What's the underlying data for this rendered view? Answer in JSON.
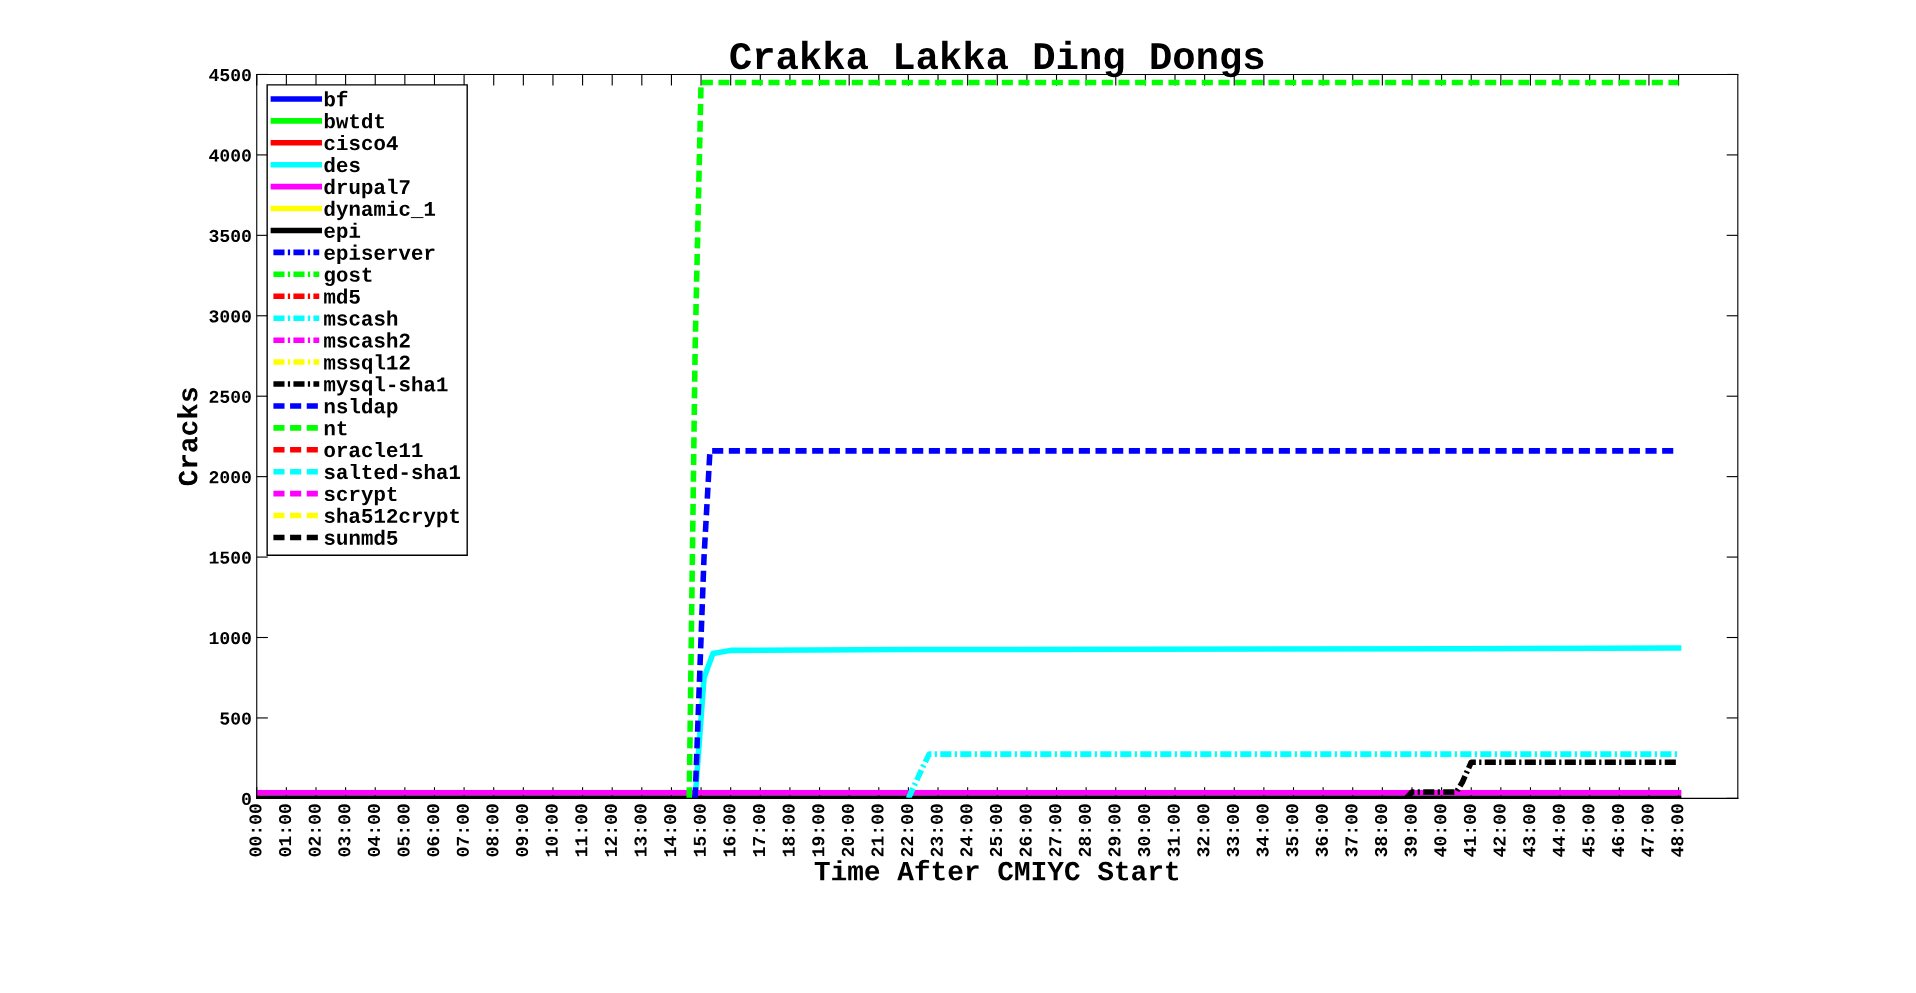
{
  "chart_data": {
    "type": "line",
    "title": "Crakka Lakka Ding Dongs",
    "xlabel": "Time After CMIYC Start",
    "ylabel": "Cracks",
    "xlim": [
      0,
      50
    ],
    "ylim": [
      0,
      4500
    ],
    "yticks": [
      0,
      500,
      1000,
      1500,
      2000,
      2500,
      3000,
      3500,
      4000,
      4500
    ],
    "xticks": [
      {
        "value": 0,
        "label": "00:00"
      },
      {
        "value": 1,
        "label": "01:00"
      },
      {
        "value": 2,
        "label": "02:00"
      },
      {
        "value": 3,
        "label": "03:00"
      },
      {
        "value": 4,
        "label": "04:00"
      },
      {
        "value": 5,
        "label": "05:00"
      },
      {
        "value": 6,
        "label": "06:00"
      },
      {
        "value": 7,
        "label": "07:00"
      },
      {
        "value": 8,
        "label": "08:00"
      },
      {
        "value": 9,
        "label": "09:00"
      },
      {
        "value": 10,
        "label": "10:00"
      },
      {
        "value": 11,
        "label": "11:00"
      },
      {
        "value": 12,
        "label": "12:00"
      },
      {
        "value": 13,
        "label": "13:00"
      },
      {
        "value": 14,
        "label": "14:00"
      },
      {
        "value": 15,
        "label": "15:00"
      },
      {
        "value": 16,
        "label": "16:00"
      },
      {
        "value": 17,
        "label": "17:00"
      },
      {
        "value": 18,
        "label": "18:00"
      },
      {
        "value": 19,
        "label": "19:00"
      },
      {
        "value": 20,
        "label": "20:00"
      },
      {
        "value": 21,
        "label": "21:00"
      },
      {
        "value": 22,
        "label": "22:00"
      },
      {
        "value": 23,
        "label": "23:00"
      },
      {
        "value": 24,
        "label": "24:00"
      },
      {
        "value": 25,
        "label": "25:00"
      },
      {
        "value": 26,
        "label": "26:00"
      },
      {
        "value": 27,
        "label": "27:00"
      },
      {
        "value": 28,
        "label": "28:00"
      },
      {
        "value": 29,
        "label": "29:00"
      },
      {
        "value": 30,
        "label": "30:00"
      },
      {
        "value": 31,
        "label": "31:00"
      },
      {
        "value": 32,
        "label": "32:00"
      },
      {
        "value": 33,
        "label": "33:00"
      },
      {
        "value": 34,
        "label": "34:00"
      },
      {
        "value": 35,
        "label": "35:00"
      },
      {
        "value": 36,
        "label": "36:00"
      },
      {
        "value": 37,
        "label": "37:00"
      },
      {
        "value": 38,
        "label": "38:00"
      },
      {
        "value": 39,
        "label": "39:00"
      },
      {
        "value": 40,
        "label": "40:00"
      },
      {
        "value": 41,
        "label": "41:00"
      },
      {
        "value": 42,
        "label": "42:00"
      },
      {
        "value": 43,
        "label": "43:00"
      },
      {
        "value": 44,
        "label": "44:00"
      },
      {
        "value": 45,
        "label": "45:00"
      },
      {
        "value": 46,
        "label": "46:00"
      },
      {
        "value": 47,
        "label": "47:00"
      },
      {
        "value": 48,
        "label": "48:00"
      }
    ],
    "grid": false,
    "legend": "top left",
    "marker": "none",
    "series": [
      {
        "name": "bf",
        "color": "#0000ff",
        "line_style": "solid"
      },
      {
        "name": "bwtdt",
        "color": "#00ff00",
        "line_style": "solid"
      },
      {
        "name": "cisco4",
        "color": "#ff0000",
        "line_style": "solid"
      },
      {
        "name": "des",
        "color": "#00ffff",
        "line_style": "solid",
        "x": [
          14.8,
          15.1,
          15.4,
          16,
          22,
          41,
          48
        ],
        "values": [
          0,
          750,
          900,
          920,
          925,
          930,
          935
        ]
      },
      {
        "name": "drupal7",
        "color": "#ff00ff",
        "line_style": "solid",
        "x": [
          0,
          48
        ],
        "values": [
          35,
          35
        ]
      },
      {
        "name": "dynamic_1",
        "color": "#ffff00",
        "line_style": "solid"
      },
      {
        "name": "epi",
        "color": "#000000",
        "line_style": "solid",
        "x": [
          0,
          48
        ],
        "values": [
          0,
          0
        ]
      },
      {
        "name": "episerver",
        "color": "#0000ff",
        "line_style": "dashdot"
      },
      {
        "name": "gost",
        "color": "#00ff00",
        "line_style": "dashdot"
      },
      {
        "name": "md5",
        "color": "#ff0000",
        "line_style": "dashdot"
      },
      {
        "name": "mscash",
        "color": "#00ffff",
        "line_style": "dashdot",
        "x": [
          22,
          22.5,
          22.7,
          48
        ],
        "values": [
          0,
          200,
          275,
          275
        ]
      },
      {
        "name": "mscash2",
        "color": "#ff00ff",
        "line_style": "dashdot"
      },
      {
        "name": "mssql12",
        "color": "#ffff00",
        "line_style": "dashdot"
      },
      {
        "name": "mysql-sha1",
        "color": "#000000",
        "line_style": "dashdot",
        "x": [
          38.8,
          39,
          40.5,
          40.7,
          41,
          48
        ],
        "values": [
          0,
          40,
          40,
          100,
          225,
          225
        ]
      },
      {
        "name": "nsldap",
        "color": "#0000ff",
        "line_style": "dashed",
        "x": [
          14.8,
          15.1,
          15.3,
          48
        ],
        "values": [
          0,
          1500,
          2160,
          2160
        ]
      },
      {
        "name": "nt",
        "color": "#00ff00",
        "line_style": "dashed",
        "x": [
          14.6,
          14.8,
          15,
          48
        ],
        "values": [
          0,
          2800,
          4450,
          4450
        ]
      },
      {
        "name": "oracle11",
        "color": "#ff0000",
        "line_style": "dashed"
      },
      {
        "name": "salted-sha1",
        "color": "#00ffff",
        "line_style": "dashed"
      },
      {
        "name": "scrypt",
        "color": "#ff00ff",
        "line_style": "dashed"
      },
      {
        "name": "sha512crypt",
        "color": "#ffff00",
        "line_style": "dashed"
      },
      {
        "name": "sunmd5",
        "color": "#000000",
        "line_style": "dashed"
      }
    ]
  }
}
